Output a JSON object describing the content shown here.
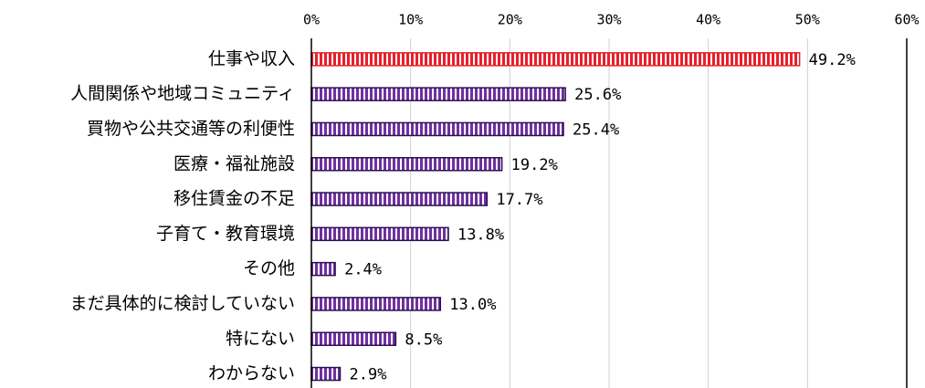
{
  "chart_data": {
    "type": "bar",
    "orientation": "horizontal",
    "categories": [
      "仕事や収入",
      "人間関係や地域コミュニティ",
      "買物や公共交通等の利便性",
      "医療・福祉施設",
      "移住賃金の不足",
      "子育て・教育環境",
      "その他",
      "まだ具体的に検討していない",
      "特にない",
      "わからない"
    ],
    "values": [
      49.2,
      25.6,
      25.4,
      19.2,
      17.7,
      13.8,
      2.4,
      13.0,
      8.5,
      2.9
    ],
    "value_labels": [
      "49.2%",
      "25.6%",
      "25.4%",
      "19.2%",
      "17.7%",
      "13.8%",
      "2.4%",
      "13.0%",
      "8.5%",
      "2.9%"
    ],
    "colors": [
      "#e8202a",
      "#7030a0",
      "#7030a0",
      "#7030a0",
      "#7030a0",
      "#7030a0",
      "#7030a0",
      "#7030a0",
      "#7030a0",
      "#7030a0"
    ],
    "xlim": [
      0,
      60
    ],
    "xticks": [
      {
        "value": 0,
        "label": "0%"
      },
      {
        "value": 10,
        "label": "10%"
      },
      {
        "value": 20,
        "label": "20%"
      },
      {
        "value": 30,
        "label": "30%"
      },
      {
        "value": 40,
        "label": "40%"
      },
      {
        "value": 50,
        "label": "50%"
      },
      {
        "value": 60,
        "label": "60%"
      }
    ],
    "grid": true
  }
}
